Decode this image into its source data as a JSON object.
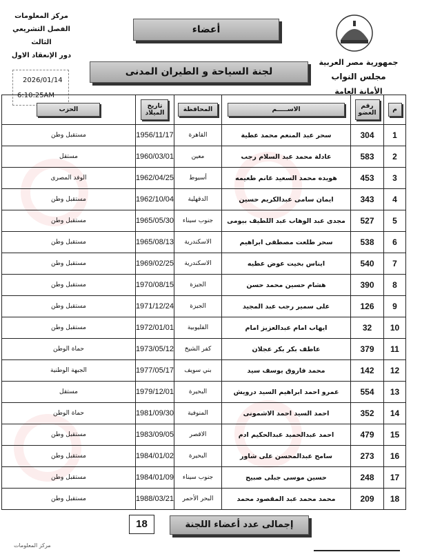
{
  "header": {
    "left_lines": [
      "مركز المعلومات",
      "الفصل التشريعي الثالث",
      "دور الإنعقاد الاول"
    ],
    "date": "2026/01/14",
    "time": "6:10:25AM",
    "title": "أعضاء",
    "committee": "لجنة السياحة و الطيران المدنى",
    "right_lines": [
      "جمهورية مصر العربية",
      "مجلس النواب",
      "الأمانة العامة"
    ],
    "logo_icon": "parliament-dome-icon"
  },
  "table": {
    "columns": {
      "index": "م",
      "member_no": "رقم العضو",
      "name": "الاســـــم",
      "governorate": "المحافظة",
      "birth": "تاريخ الميلاد",
      "party": "الحزب"
    },
    "rows": [
      {
        "i": "1",
        "no": "304",
        "name": "سحر عبد المنعم محمد عطية",
        "gov": "القاهرة",
        "birth": "1956/11/17",
        "party": "مستقبل وطن"
      },
      {
        "i": "2",
        "no": "583",
        "name": "عادلة محمد عبد السلام رجب",
        "gov": "معين",
        "birth": "1960/03/01",
        "party": "مستقل"
      },
      {
        "i": "3",
        "no": "453",
        "name": "هويده محمد السعيد غانم طعيمه",
        "gov": "أسيوط",
        "birth": "1962/04/25",
        "party": "الوفد المصرى"
      },
      {
        "i": "4",
        "no": "343",
        "name": "ايمان سامى عبدالكريم حسين",
        "gov": "الدقهلية",
        "birth": "1962/10/04",
        "party": "مستقبل وطن"
      },
      {
        "i": "5",
        "no": "527",
        "name": "مجدى عبد الوهاب عبد اللطيف بيومى",
        "gov": "جنوب سيناء",
        "birth": "1965/05/30",
        "party": "مستقبل وطن"
      },
      {
        "i": "6",
        "no": "538",
        "name": "سحر طلعت مصطفى ابراهيم",
        "gov": "الاسكندرية",
        "birth": "1965/08/13",
        "party": "مستقبل وطن"
      },
      {
        "i": "7",
        "no": "540",
        "name": "ايناس بخيت عوض عطيه",
        "gov": "الاسكندرية",
        "birth": "1969/02/25",
        "party": "مستقبل وطن"
      },
      {
        "i": "8",
        "no": "390",
        "name": "هشام حسين محمد حسن",
        "gov": "الجيزة",
        "birth": "1970/08/15",
        "party": "مستقبل وطن"
      },
      {
        "i": "9",
        "no": "126",
        "name": "على سمير رجب عبد المجيد",
        "gov": "الجيزة",
        "birth": "1971/12/24",
        "party": "مستقبل وطن"
      },
      {
        "i": "10",
        "no": "32",
        "name": "ايهاب امام عبدالعزيز امام",
        "gov": "القليوبية",
        "birth": "1972/01/01",
        "party": "مستقبل وطن"
      },
      {
        "i": "11",
        "no": "379",
        "name": "عاطف بكر بكر عجلان",
        "gov": "كفر الشيخ",
        "birth": "1973/05/12",
        "party": "حماة الوطن"
      },
      {
        "i": "12",
        "no": "142",
        "name": "محمد فاروق يوسف سيد",
        "gov": "بني سويف",
        "birth": "1977/05/17",
        "party": "الجبهة الوطنية"
      },
      {
        "i": "13",
        "no": "554",
        "name": "عمرو احمد ابراهيم السيد درويش",
        "gov": "البحيرة",
        "birth": "1979/12/01",
        "party": "مستقل"
      },
      {
        "i": "14",
        "no": "352",
        "name": "احمد السيد احمد الاشمونى",
        "gov": "المنوفية",
        "birth": "1981/09/30",
        "party": "حماة الوطن"
      },
      {
        "i": "15",
        "no": "479",
        "name": "احمد عبدالحميد عبدالحكيم ادم",
        "gov": "الاقصر",
        "birth": "1983/09/05",
        "party": "مستقبل وطن"
      },
      {
        "i": "16",
        "no": "273",
        "name": "سامح عبدالمحسن على شاور",
        "gov": "البحيرة",
        "birth": "1984/01/02",
        "party": "مستقبل وطن"
      },
      {
        "i": "17",
        "no": "248",
        "name": "حسين موسى جبلى صبيح",
        "gov": "جنوب سيناء",
        "birth": "1984/01/09",
        "party": "مستقبل وطن"
      },
      {
        "i": "18",
        "no": "209",
        "name": "محمد محمد عبد المقصود محمد",
        "gov": "البحر الأحمر",
        "birth": "1988/03/21",
        "party": "مستقبل وطن"
      }
    ]
  },
  "footer": {
    "total_label": "إجمالى عدد أعضاء اللجنة",
    "total_count": "18",
    "source": "مركز المعلومات"
  }
}
